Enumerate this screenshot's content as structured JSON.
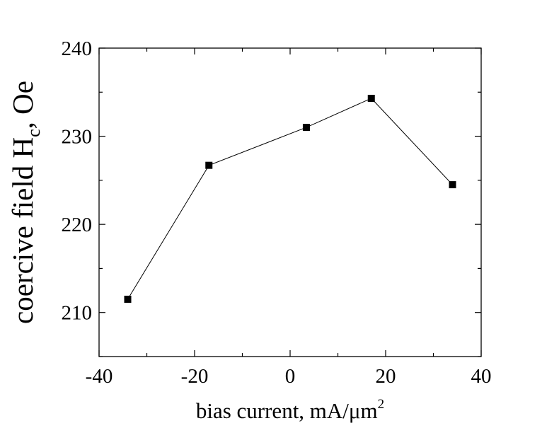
{
  "chart_data": {
    "type": "line",
    "title": "",
    "xlabel": "bias current, mA/μm",
    "xlabel_superscript": "2",
    "ylabel": "coercive field H",
    "ylabel_subscript": "c",
    "ylabel_suffix": ", Oe",
    "xlim": [
      -40,
      40
    ],
    "ylim": [
      205,
      240
    ],
    "x_ticks": [
      -40,
      -20,
      0,
      20,
      40
    ],
    "y_ticks": [
      210,
      220,
      230,
      240
    ],
    "x_minor_step": 10,
    "y_minor_step": 5,
    "grid": false,
    "marker": "square",
    "series": [
      {
        "x": [
          -34,
          -17,
          3.4,
          17,
          34
        ],
        "y": [
          211.5,
          226.7,
          231.0,
          234.3,
          224.5
        ]
      }
    ],
    "colors": {
      "line": "#000000",
      "marker": "#000000",
      "axis": "#000000"
    }
  }
}
